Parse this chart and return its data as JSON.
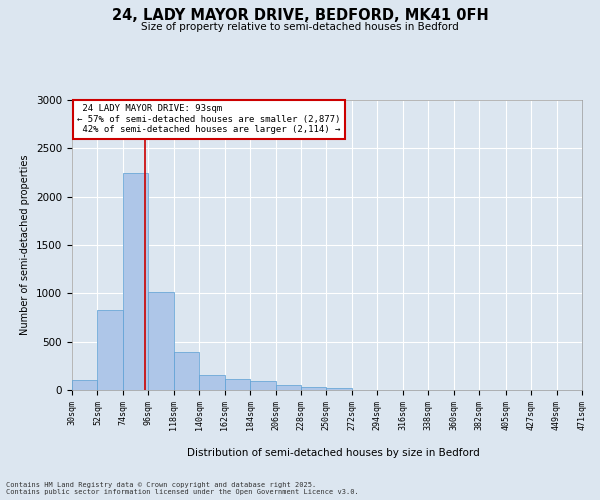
{
  "title": "24, LADY MAYOR DRIVE, BEDFORD, MK41 0FH",
  "subtitle": "Size of property relative to semi-detached houses in Bedford",
  "xlabel": "Distribution of semi-detached houses by size in Bedford",
  "ylabel": "Number of semi-detached properties",
  "property_size": 93,
  "property_label": "24 LADY MAYOR DRIVE: 93sqm",
  "smaller_pct": 57,
  "smaller_count": 2877,
  "larger_pct": 42,
  "larger_count": 2114,
  "bin_edges": [
    30,
    52,
    74,
    96,
    118,
    140,
    162,
    184,
    206,
    228,
    250,
    272,
    294,
    316,
    338,
    360,
    382,
    405,
    427,
    449,
    471
  ],
  "bar_heights": [
    100,
    830,
    2250,
    1010,
    390,
    155,
    115,
    90,
    55,
    30,
    20,
    5,
    3,
    3,
    2,
    1,
    1,
    1,
    1,
    1
  ],
  "bar_color": "#aec6e8",
  "bar_edge_color": "#5a9fd4",
  "vline_color": "#cc0000",
  "vline_x": 93,
  "ylim": [
    0,
    3000
  ],
  "yticks": [
    0,
    500,
    1000,
    1500,
    2000,
    2500,
    3000
  ],
  "bg_color": "#dce6f0",
  "plot_bg_color": "#dce6f0",
  "footer_line1": "Contains HM Land Registry data © Crown copyright and database right 2025.",
  "footer_line2": "Contains public sector information licensed under the Open Government Licence v3.0."
}
